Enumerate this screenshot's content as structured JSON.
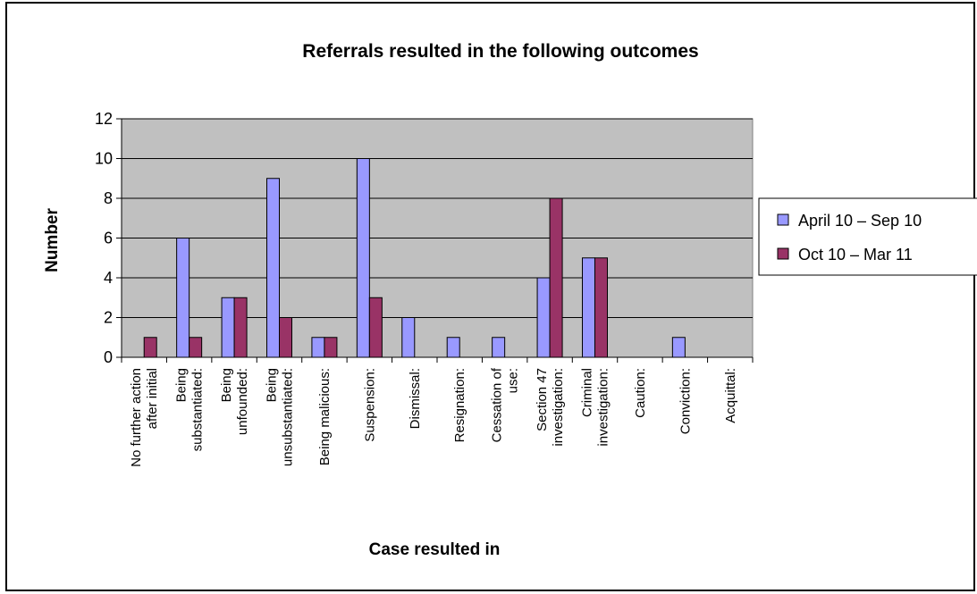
{
  "chart_data": {
    "type": "bar",
    "title": "Referrals resulted in the following outcomes",
    "xlabel": "Case resulted in",
    "ylabel": "Number",
    "ylim": [
      0,
      12
    ],
    "yticks": [
      0,
      2,
      4,
      6,
      8,
      10,
      12
    ],
    "grid": true,
    "legend_position": "right",
    "categories": [
      [
        "No further action",
        "after initial"
      ],
      [
        "Being",
        "substantiated:"
      ],
      [
        "Being",
        "unfounded:"
      ],
      [
        "Being",
        "unsubstantiated:"
      ],
      [
        "Being malicious:"
      ],
      [
        "Suspension:"
      ],
      [
        "Dismissal:"
      ],
      [
        "Resignation:"
      ],
      [
        "Cessation of",
        "use:"
      ],
      [
        "Section 47",
        "investigation:"
      ],
      [
        "Criminal",
        "investigation:"
      ],
      [
        "Caution:"
      ],
      [
        "Conviction:"
      ],
      [
        "Acquittal:"
      ]
    ],
    "series": [
      {
        "name": "April 10 – Sep 10",
        "color": "#9999ff",
        "values": [
          0,
          6,
          3,
          9,
          1,
          10,
          2,
          1,
          1,
          4,
          5,
          0,
          1,
          0
        ]
      },
      {
        "name": "Oct 10 – Mar 11",
        "color": "#993366",
        "values": [
          1,
          1,
          3,
          2,
          1,
          3,
          0,
          0,
          0,
          8,
          5,
          0,
          0,
          0
        ]
      }
    ],
    "plot_background": "#c0c0c0"
  }
}
